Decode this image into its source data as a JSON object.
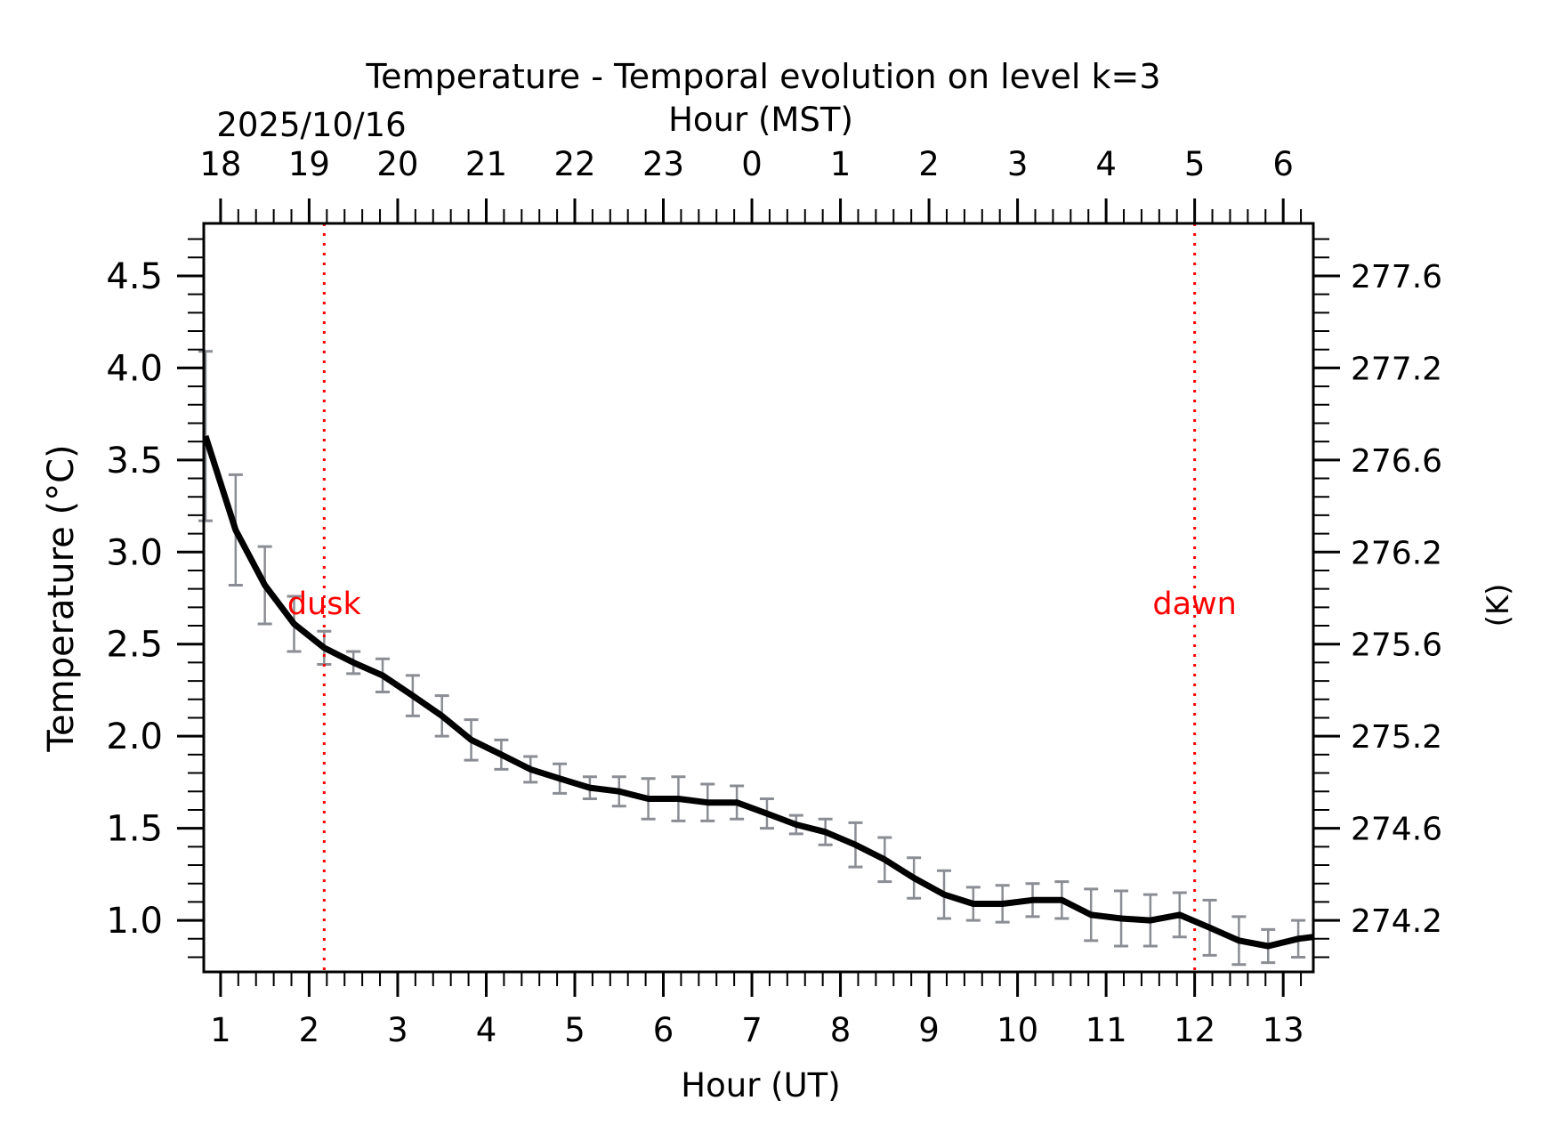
{
  "chart_data": {
    "type": "line",
    "title": "Temperature - Temporal evolution on level k=3",
    "xlabel": "Hour (UT)",
    "ylabel": "Temperature (°C)",
    "y2label": "(K)",
    "top_xlabel": "Hour (MST)",
    "top_date": "2025/10/16",
    "xlim": [
      0.81,
      13.34
    ],
    "ylim": [
      0.72,
      4.785
    ],
    "grid": false,
    "x_ticks": [
      1,
      2,
      3,
      4,
      5,
      6,
      7,
      8,
      9,
      10,
      11,
      12,
      13
    ],
    "x_tick_labels": [
      "1",
      "2",
      "3",
      "4",
      "5",
      "6",
      "7",
      "8",
      "9",
      "10",
      "11",
      "12",
      "13"
    ],
    "top_x_ticks": [
      1,
      2,
      3,
      4,
      5,
      6,
      7,
      8,
      9,
      10,
      11,
      12,
      13
    ],
    "top_x_tick_labels": [
      "18",
      "19",
      "20",
      "21",
      "22",
      "23",
      "0",
      "1",
      "2",
      "3",
      "4",
      "5",
      "6"
    ],
    "y_ticks": [
      1.0,
      1.5,
      2.0,
      2.5,
      3.0,
      3.5,
      4.0,
      4.5
    ],
    "y_tick_labels": [
      "1.0",
      "1.5",
      "2.0",
      "2.5",
      "3.0",
      "3.5",
      "4.0",
      "4.5"
    ],
    "y2_ticks": [
      1.0,
      1.5,
      2.0,
      2.5,
      3.0,
      3.5,
      4.0,
      4.5
    ],
    "y2_tick_labels": [
      "274.2",
      "274.6",
      "275.2",
      "275.6",
      "276.2",
      "276.6",
      "277.2",
      "277.6"
    ],
    "series": [
      {
        "name": "Temperature",
        "color": "#000000",
        "errorbar_color": "#8a8d93",
        "x": [
          0.83,
          1.17,
          1.5,
          1.83,
          2.17,
          2.5,
          2.83,
          3.17,
          3.5,
          3.83,
          4.17,
          4.5,
          4.83,
          5.17,
          5.5,
          5.83,
          6.17,
          6.5,
          6.83,
          7.17,
          7.5,
          7.83,
          8.17,
          8.5,
          8.83,
          9.17,
          9.5,
          9.83,
          10.17,
          10.5,
          10.83,
          11.17,
          11.5,
          11.83,
          12.17,
          12.5,
          12.83,
          13.17,
          13.34
        ],
        "values": [
          3.63,
          3.12,
          2.82,
          2.61,
          2.48,
          2.4,
          2.33,
          2.22,
          2.11,
          1.98,
          1.9,
          1.82,
          1.77,
          1.72,
          1.7,
          1.66,
          1.66,
          1.64,
          1.64,
          1.58,
          1.52,
          1.48,
          1.41,
          1.33,
          1.23,
          1.14,
          1.09,
          1.09,
          1.11,
          1.11,
          1.03,
          1.01,
          1.0,
          1.03,
          0.96,
          0.89,
          0.86,
          0.9,
          0.91
        ],
        "errors": [
          0.46,
          0.3,
          0.21,
          0.15,
          0.09,
          0.06,
          0.09,
          0.11,
          0.11,
          0.11,
          0.08,
          0.07,
          0.08,
          0.06,
          0.08,
          0.11,
          0.12,
          0.1,
          0.09,
          0.08,
          0.05,
          0.07,
          0.12,
          0.12,
          0.11,
          0.13,
          0.09,
          0.1,
          0.09,
          0.1,
          0.14,
          0.15,
          0.14,
          0.12,
          0.15,
          0.13,
          0.09,
          0.1,
          null
        ]
      }
    ],
    "annotations": [
      {
        "text": "dusk",
        "x": 2.17,
        "y": 2.72,
        "color": "#ff0000",
        "line": "vertical-dotted"
      },
      {
        "text": "dawn",
        "x": 12.0,
        "y": 2.72,
        "color": "#ff0000",
        "line": "vertical-dotted"
      }
    ]
  }
}
